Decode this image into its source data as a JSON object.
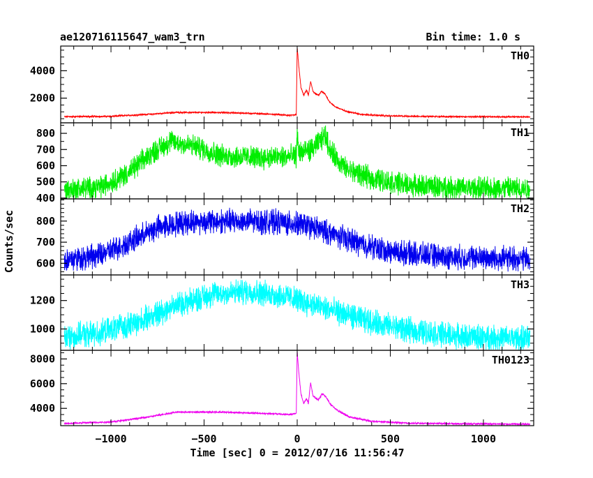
{
  "header": {
    "title": "ae120716115647_wam3_trn",
    "bin_time": "Bin time: 1.0 s"
  },
  "chart_data": {
    "type": "line",
    "title": "ae120716115647_wam3_trn",
    "subtitle": "Bin time: 1.0 s",
    "xlabel": "Time [sec] 0 = 2012/07/16 11:56:47",
    "ylabel": "Counts/sec",
    "xlim": [
      -1270,
      1270
    ],
    "x_ticks": [
      -1000,
      -500,
      0,
      500,
      1000
    ],
    "x_tick_labels": [
      "−1000",
      "−500",
      "0",
      "500",
      "1000"
    ],
    "grid": false,
    "panels": [
      {
        "name": "TH0",
        "color": "#ff0000",
        "ylim": [
          200,
          5800
        ],
        "y_ticks": [
          2000,
          4000
        ],
        "noise": 40,
        "series": [
          {
            "x": -1250,
            "y": 650
          },
          {
            "x": -1000,
            "y": 670
          },
          {
            "x": -800,
            "y": 820
          },
          {
            "x": -650,
            "y": 960
          },
          {
            "x": -400,
            "y": 950
          },
          {
            "x": -200,
            "y": 870
          },
          {
            "x": -30,
            "y": 740
          },
          {
            "x": -5,
            "y": 800
          },
          {
            "x": 0,
            "y": 5700
          },
          {
            "x": 8,
            "y": 4400
          },
          {
            "x": 20,
            "y": 2800
          },
          {
            "x": 35,
            "y": 2200
          },
          {
            "x": 50,
            "y": 2600
          },
          {
            "x": 60,
            "y": 2200
          },
          {
            "x": 72,
            "y": 3200
          },
          {
            "x": 85,
            "y": 2500
          },
          {
            "x": 100,
            "y": 2300
          },
          {
            "x": 115,
            "y": 2200
          },
          {
            "x": 130,
            "y": 2500
          },
          {
            "x": 150,
            "y": 2300
          },
          {
            "x": 170,
            "y": 1800
          },
          {
            "x": 200,
            "y": 1400
          },
          {
            "x": 260,
            "y": 1050
          },
          {
            "x": 350,
            "y": 800
          },
          {
            "x": 500,
            "y": 700
          },
          {
            "x": 800,
            "y": 650
          },
          {
            "x": 1250,
            "y": 630
          }
        ]
      },
      {
        "name": "TH1",
        "color": "#00ee00",
        "ylim": [
          395,
          865
        ],
        "y_ticks": [
          400,
          500,
          600,
          700,
          800
        ],
        "noise": 55,
        "series": [
          {
            "x": -1250,
            "y": 450
          },
          {
            "x": -1050,
            "y": 470
          },
          {
            "x": -900,
            "y": 560
          },
          {
            "x": -780,
            "y": 680
          },
          {
            "x": -680,
            "y": 750
          },
          {
            "x": -550,
            "y": 720
          },
          {
            "x": -400,
            "y": 660
          },
          {
            "x": -200,
            "y": 650
          },
          {
            "x": -50,
            "y": 655
          },
          {
            "x": -5,
            "y": 660
          },
          {
            "x": 0,
            "y": 790
          },
          {
            "x": 10,
            "y": 680
          },
          {
            "x": 80,
            "y": 700
          },
          {
            "x": 130,
            "y": 760
          },
          {
            "x": 150,
            "y": 790
          },
          {
            "x": 180,
            "y": 690
          },
          {
            "x": 260,
            "y": 580
          },
          {
            "x": 400,
            "y": 520
          },
          {
            "x": 600,
            "y": 480
          },
          {
            "x": 900,
            "y": 460
          },
          {
            "x": 1250,
            "y": 460
          }
        ]
      },
      {
        "name": "TH2",
        "color": "#0000ee",
        "ylim": [
          545,
          905
        ],
        "y_ticks": [
          600,
          700,
          800
        ],
        "noise": 45,
        "series": [
          {
            "x": -1250,
            "y": 615
          },
          {
            "x": -1050,
            "y": 640
          },
          {
            "x": -900,
            "y": 700
          },
          {
            "x": -750,
            "y": 770
          },
          {
            "x": -600,
            "y": 795
          },
          {
            "x": -350,
            "y": 800
          },
          {
            "x": -100,
            "y": 795
          },
          {
            "x": 50,
            "y": 780
          },
          {
            "x": 200,
            "y": 735
          },
          {
            "x": 350,
            "y": 690
          },
          {
            "x": 500,
            "y": 655
          },
          {
            "x": 800,
            "y": 630
          },
          {
            "x": 1250,
            "y": 620
          }
        ]
      },
      {
        "name": "TH3",
        "color": "#00ffff",
        "ylim": [
          850,
          1380
        ],
        "y_ticks": [
          1000,
          1200
        ],
        "noise": 70,
        "series": [
          {
            "x": -1250,
            "y": 940
          },
          {
            "x": -1050,
            "y": 975
          },
          {
            "x": -850,
            "y": 1050
          },
          {
            "x": -650,
            "y": 1170
          },
          {
            "x": -450,
            "y": 1245
          },
          {
            "x": -250,
            "y": 1265
          },
          {
            "x": -50,
            "y": 1225
          },
          {
            "x": 150,
            "y": 1145
          },
          {
            "x": 350,
            "y": 1065
          },
          {
            "x": 600,
            "y": 990
          },
          {
            "x": 900,
            "y": 945
          },
          {
            "x": 1250,
            "y": 930
          }
        ]
      },
      {
        "name": "TH0123",
        "color": "#ee00ee",
        "ylim": [
          2600,
          8700
        ],
        "y_ticks": [
          4000,
          6000,
          8000
        ],
        "noise": 50,
        "series": [
          {
            "x": -1250,
            "y": 2780
          },
          {
            "x": -1000,
            "y": 2900
          },
          {
            "x": -800,
            "y": 3300
          },
          {
            "x": -650,
            "y": 3700
          },
          {
            "x": -400,
            "y": 3700
          },
          {
            "x": -200,
            "y": 3600
          },
          {
            "x": -30,
            "y": 3500
          },
          {
            "x": -5,
            "y": 3600
          },
          {
            "x": 0,
            "y": 8600
          },
          {
            "x": 8,
            "y": 7000
          },
          {
            "x": 20,
            "y": 5200
          },
          {
            "x": 35,
            "y": 4400
          },
          {
            "x": 50,
            "y": 4800
          },
          {
            "x": 60,
            "y": 4400
          },
          {
            "x": 72,
            "y": 6100
          },
          {
            "x": 85,
            "y": 5000
          },
          {
            "x": 100,
            "y": 4800
          },
          {
            "x": 115,
            "y": 4700
          },
          {
            "x": 135,
            "y": 5200
          },
          {
            "x": 155,
            "y": 4900
          },
          {
            "x": 180,
            "y": 4300
          },
          {
            "x": 220,
            "y": 3800
          },
          {
            "x": 280,
            "y": 3300
          },
          {
            "x": 400,
            "y": 2950
          },
          {
            "x": 600,
            "y": 2800
          },
          {
            "x": 900,
            "y": 2750
          },
          {
            "x": 1250,
            "y": 2720
          }
        ]
      }
    ]
  }
}
